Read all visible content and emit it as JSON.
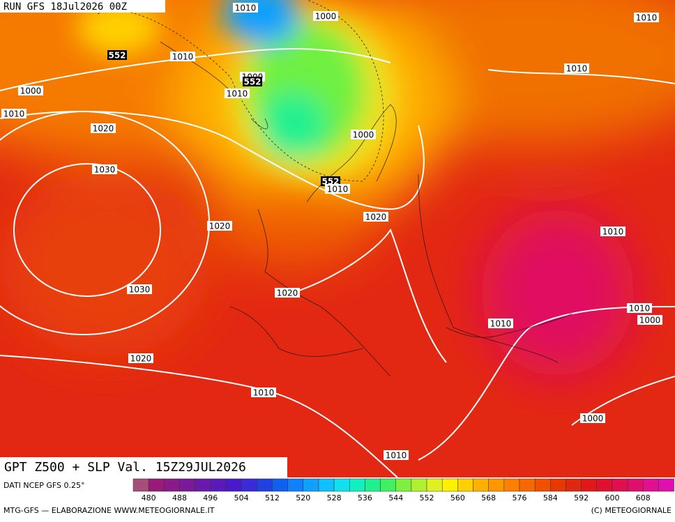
{
  "header": {
    "run": "RUN GFS 18Jul2026 00Z"
  },
  "map": {
    "title": "GPT Z500 + SLP Val. 15Z29JUL2026",
    "contour_labels": [
      1010,
      1000,
      1010,
      552,
      1010,
      1010,
      1000,
      552,
      1010,
      1000,
      1010,
      1020,
      1000,
      1030,
      552,
      1010,
      1020,
      1020,
      1010,
      1030,
      1020,
      1010,
      1010,
      1000,
      1020,
      1010,
      1000,
      1010
    ]
  },
  "colorbar": {
    "source": "DATI NCEP GFS 0.25°",
    "colors": [
      "#a64d79",
      "#9a1a7a",
      "#8a1a8a",
      "#7a1a9a",
      "#6a1aaa",
      "#5a1aba",
      "#4a1aca",
      "#3a2ad8",
      "#2040e0",
      "#1060f0",
      "#1080ff",
      "#10a0ff",
      "#10c0ff",
      "#10e0f0",
      "#10f0c0",
      "#20f090",
      "#40f060",
      "#80f040",
      "#b0f030",
      "#e0f020",
      "#fff000",
      "#ffd000",
      "#ffb000",
      "#ff9800",
      "#ff8000",
      "#f86800",
      "#f05000",
      "#e83800",
      "#e02810",
      "#e01818",
      "#e01030",
      "#e01050",
      "#e0106a",
      "#e01090",
      "#e010b0"
    ],
    "labels": [
      480,
      488,
      496,
      504,
      512,
      520,
      528,
      536,
      544,
      552,
      560,
      568,
      576,
      584,
      592,
      600,
      608
    ]
  },
  "footer": {
    "left": "MTG-GFS — ELABORAZIONE WWW.METEOGIORNALE.IT",
    "right": "(C) METEOGIORNALE"
  }
}
